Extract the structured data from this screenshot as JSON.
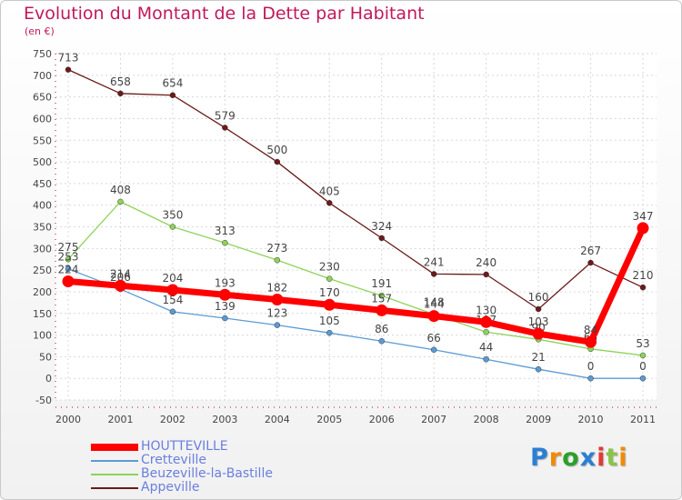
{
  "title": "Evolution du Montant de la Dette par Habitant",
  "subtitle": "(en €)",
  "logo": [
    "P",
    "r",
    "o",
    "x",
    "i",
    "t",
    "i"
  ],
  "chart_data": {
    "type": "line",
    "x": [
      "2000",
      "2001",
      "2002",
      "2003",
      "2004",
      "2005",
      "2006",
      "2007",
      "2008",
      "2009",
      "2010",
      "2011"
    ],
    "ylim": [
      -50,
      750
    ],
    "yticks": [
      -50,
      0,
      50,
      100,
      150,
      200,
      250,
      300,
      350,
      400,
      450,
      500,
      550,
      600,
      650,
      700,
      750
    ],
    "grid": true,
    "legend": "bottom-left",
    "series": [
      {
        "name": "Appeville",
        "color": "#6b1a1a",
        "values": [
          713,
          658,
          654,
          579,
          500,
          405,
          324,
          241,
          240,
          160,
          267,
          210
        ]
      },
      {
        "name": "Beuzeville-la-Bastille",
        "color": "#8fd35a",
        "values": [
          275,
          408,
          350,
          313,
          273,
          230,
          191,
          148,
          107,
          90,
          68,
          53
        ]
      },
      {
        "name": "Cretteville",
        "color": "#5b9bd5",
        "values": [
          253,
          206,
          154,
          139,
          123,
          105,
          86,
          66,
          44,
          21,
          0,
          0
        ]
      },
      {
        "name": "HOUTTEVILLE",
        "color": "#ff0000",
        "values": [
          224,
          214,
          204,
          193,
          182,
          170,
          157,
          144,
          130,
          103,
          84,
          347
        ]
      }
    ]
  }
}
